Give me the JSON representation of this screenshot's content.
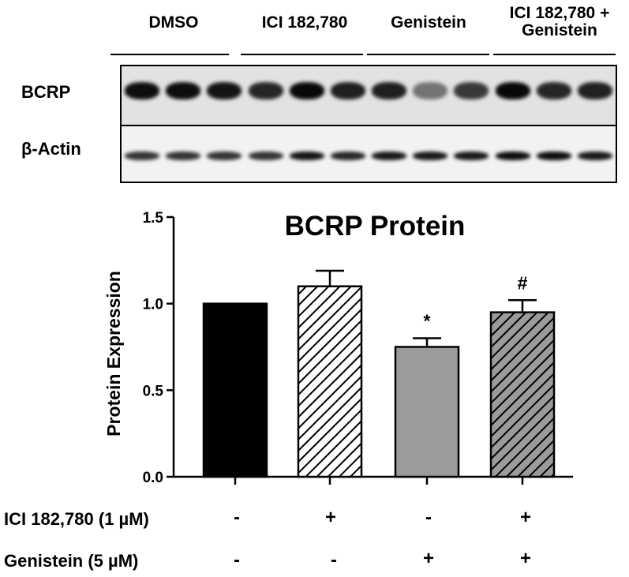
{
  "blot": {
    "groups": [
      "DMSO",
      "ICI 182,780",
      "Genistein",
      "ICI 182,780 +\nGenistein"
    ],
    "lanes": [
      "BCRP",
      "β-Actin"
    ],
    "bcrp_band_intensity": [
      0.95,
      0.95,
      0.92,
      0.85,
      0.97,
      0.88,
      0.88,
      0.55,
      0.78,
      0.97,
      0.85,
      0.87
    ],
    "actin_band_intensity": [
      0.8,
      0.8,
      0.8,
      0.8,
      0.92,
      0.85,
      0.9,
      0.9,
      0.9,
      0.95,
      0.95,
      0.9
    ]
  },
  "chart_data": {
    "type": "bar",
    "title": "BCRP Protein",
    "xlabel": "",
    "ylabel": "Protein Expression",
    "ylim": [
      0,
      1.5
    ],
    "yticks": [
      "0.0",
      "0.5",
      "1.0",
      "1.5"
    ],
    "categories": [
      "DMSO",
      "ICI 182,780",
      "Genistein",
      "ICI 182,780 + Genistein"
    ],
    "values": [
      1.0,
      1.1,
      0.75,
      0.95
    ],
    "errors": [
      0,
      0.09,
      0.05,
      0.07
    ],
    "annotations": [
      "",
      "",
      "*",
      "#"
    ],
    "fills": [
      "solid-black",
      "hatch-white",
      "solid-gray",
      "hatch-gray"
    ],
    "colors": {
      "black": "#000000",
      "gray": "#9b9b9b",
      "white": "#ffffff"
    },
    "grid": false
  },
  "conditions": {
    "rows": [
      {
        "label": "ICI 182,780 (1 µM)",
        "signs": [
          "-",
          "+",
          "-",
          "+"
        ]
      },
      {
        "label": "Genistein (5 µM)",
        "signs": [
          "-",
          "-",
          "+",
          "+"
        ]
      }
    ]
  }
}
